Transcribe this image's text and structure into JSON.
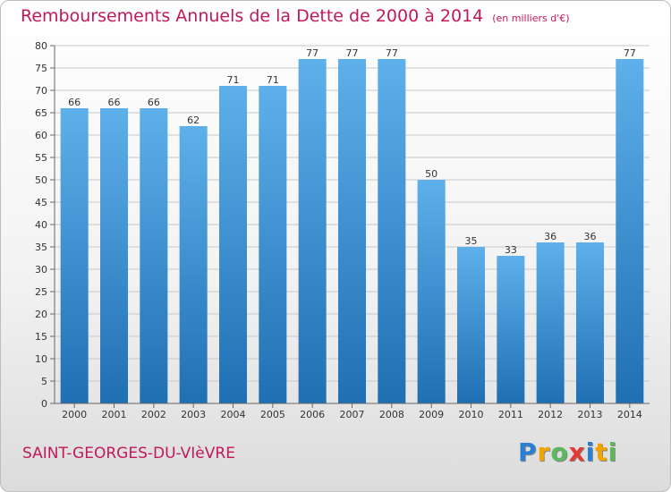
{
  "header": {
    "title": "Remboursements Annuels de la Dette de 2000 à 2014",
    "unit": "(en milliers d'€)"
  },
  "footer": {
    "commune": "SAINT-GEORGES-DU-VIèVRE",
    "logo_letters": [
      "P",
      "r",
      "o",
      "x",
      "i",
      "t",
      "i"
    ],
    "logo_colors": [
      "#2a7fd4",
      "#f0a500",
      "#5cb85c",
      "#e53935",
      "#2a7fd4",
      "#f0a500",
      "#5cb85c"
    ]
  },
  "colors": {
    "bar_top": "#5eb0ea",
    "bar_bottom": "#1f6fb3",
    "grid": "#c8c8c8",
    "axis_text": "#333333"
  },
  "chart_data": {
    "type": "bar",
    "categories": [
      "2000",
      "2001",
      "2002",
      "2003",
      "2004",
      "2005",
      "2006",
      "2007",
      "2008",
      "2009",
      "2010",
      "2011",
      "2012",
      "2013",
      "2014"
    ],
    "values": [
      66,
      66,
      66,
      62,
      71,
      71,
      77,
      77,
      77,
      50,
      35,
      33,
      36,
      36,
      77
    ],
    "ylim": [
      0,
      80
    ],
    "yticks": [
      0,
      5,
      10,
      15,
      20,
      25,
      30,
      35,
      40,
      45,
      50,
      55,
      60,
      65,
      70,
      75,
      80
    ],
    "grid": true,
    "data_labels": true
  }
}
